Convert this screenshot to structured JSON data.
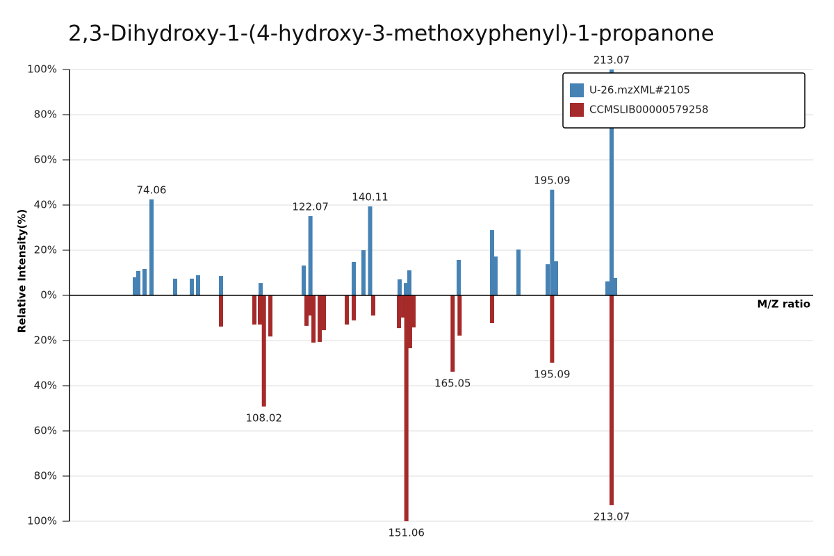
{
  "chart_data": {
    "type": "mirror_bar",
    "title": "2,3-Dihydroxy-1-(4-hydroxy-3-methoxyphenyl)-1-propanone",
    "y_label": "Relative Intensity(%)",
    "x_label": "M/Z ratio",
    "xlim": [
      49.28,
      273.97
    ],
    "ylim": [
      -100,
      100
    ],
    "yticks": [
      {
        "value": 100,
        "label": "100%"
      },
      {
        "value": 80,
        "label": "80%"
      },
      {
        "value": 60,
        "label": "60%"
      },
      {
        "value": 40,
        "label": "40%"
      },
      {
        "value": 20,
        "label": "20%"
      },
      {
        "value": 0,
        "label": "0%"
      },
      {
        "value": -20,
        "label": "20%"
      },
      {
        "value": -40,
        "label": "40%"
      },
      {
        "value": -60,
        "label": "60%"
      },
      {
        "value": -80,
        "label": "80%"
      },
      {
        "value": -100,
        "label": "100%"
      }
    ],
    "grid": true,
    "legend": "upper right",
    "series": [
      {
        "name": "U-26.mzXML#2105",
        "color": "#4682b4",
        "x": [
          69.02,
          70.07,
          71.96,
          74.06,
          81.2,
          86.24,
          88.13,
          95.06,
          107.03,
          120.05,
          122.07,
          135.17,
          138.11,
          140.11,
          149.03,
          150.92,
          151.97,
          166.88,
          176.96,
          178.01,
          184.94,
          193.76,
          195.09,
          196.28,
          211.82,
          213.07,
          214.13
        ],
        "values": [
          8.0,
          10.8,
          11.7,
          42.5,
          7.4,
          7.4,
          8.9,
          8.6,
          5.5,
          13.2,
          35.1,
          14.8,
          20.0,
          39.4,
          7.1,
          5.5,
          11.1,
          15.7,
          28.9,
          17.2,
          20.3,
          13.8,
          46.8,
          15.1,
          6.2,
          100,
          7.7
        ],
        "labels": [
          null,
          null,
          null,
          "74.06",
          null,
          null,
          null,
          null,
          null,
          null,
          "122.07",
          null,
          null,
          "140.11",
          null,
          null,
          null,
          null,
          null,
          null,
          null,
          null,
          "195.09",
          null,
          null,
          "213.07",
          null
        ]
      },
      {
        "name": "CCMSLIB00000579258",
        "color": "#a52a2a",
        "x": [
          95.06,
          105.14,
          106.82,
          108.02,
          109.97,
          120.89,
          121.94,
          123.0,
          124.88,
          126.14,
          133.07,
          135.17,
          141.05,
          148.82,
          150.08,
          151.06,
          152.17,
          153.23,
          165.05,
          167.15,
          176.96,
          195.09,
          213.07
        ],
        "values": [
          -13.8,
          -12.9,
          -12.9,
          -49.2,
          -18.2,
          -13.5,
          -8.9,
          -20.9,
          -20.6,
          -15.4,
          -12.9,
          -11.1,
          -8.9,
          -14.5,
          -9.8,
          -100,
          -23.4,
          -14.2,
          -33.8,
          -17.8,
          -12.3,
          -29.8,
          -92.9
        ],
        "labels": [
          null,
          null,
          null,
          "108.02",
          null,
          null,
          null,
          null,
          null,
          null,
          null,
          null,
          null,
          null,
          null,
          "151.06",
          null,
          null,
          "165.05",
          null,
          null,
          "195.09",
          "213.07"
        ]
      }
    ]
  }
}
